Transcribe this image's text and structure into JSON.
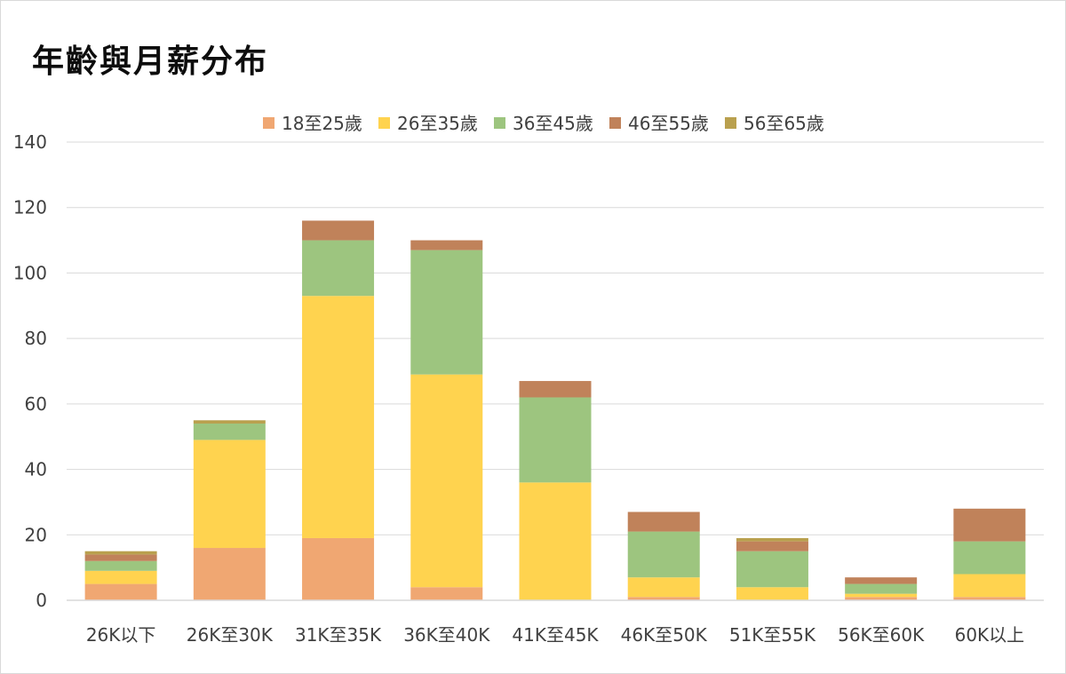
{
  "chart_data": {
    "type": "bar",
    "stacked": true,
    "title": "年齡與月薪分布",
    "xlabel": "",
    "ylabel": "",
    "ylim": [
      0,
      140
    ],
    "yticks": [
      0,
      20,
      40,
      60,
      80,
      100,
      120,
      140
    ],
    "grid": true,
    "legend_position": "top",
    "categories": [
      "26K以下",
      "26K至30K",
      "31K至35K",
      "36K至40K",
      "41K至45K",
      "46K至50K",
      "51K至55K",
      "56K至60K",
      "60K以上"
    ],
    "series": [
      {
        "name": "18至25歲",
        "color": "#F0A772",
        "values": [
          5,
          16,
          19,
          4,
          0,
          1,
          0,
          1,
          1
        ]
      },
      {
        "name": "26至35歲",
        "color": "#FFD34F",
        "values": [
          4,
          33,
          74,
          65,
          36,
          6,
          4,
          1,
          7
        ]
      },
      {
        "name": "36至45歲",
        "color": "#9DC57F",
        "values": [
          3,
          5,
          17,
          38,
          26,
          14,
          11,
          3,
          10
        ]
      },
      {
        "name": "46至55歲",
        "color": "#C0825A",
        "values": [
          2,
          0,
          6,
          3,
          5,
          6,
          3,
          2,
          10
        ]
      },
      {
        "name": "56至65歲",
        "color": "#B9A04E",
        "values": [
          1,
          1,
          0,
          0,
          0,
          0,
          1,
          0,
          0
        ]
      }
    ]
  }
}
